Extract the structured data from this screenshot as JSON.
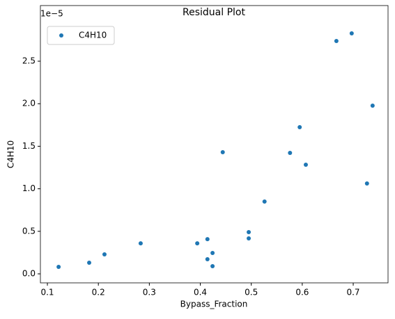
{
  "chart_data": {
    "type": "scatter",
    "title": "Residual Plot",
    "xlabel": "Bypass_Fraction",
    "ylabel": "C4H10",
    "y_offset_label": "1e−5",
    "series": [
      {
        "name": "C4H10",
        "color": "#1f77b4",
        "x": [
          0.122,
          0.182,
          0.212,
          0.283,
          0.394,
          0.414,
          0.414,
          0.424,
          0.424,
          0.444,
          0.495,
          0.495,
          0.526,
          0.576,
          0.595,
          0.607,
          0.667,
          0.697,
          0.727,
          0.738
        ],
        "values": [
          0.082,
          0.131,
          0.229,
          0.359,
          0.359,
          0.408,
          0.172,
          0.245,
          0.09,
          1.43,
          0.49,
          0.417,
          0.85,
          1.422,
          1.724,
          1.283,
          2.737,
          2.827,
          1.062,
          1.977
        ]
      }
    ],
    "xlim": [
      0.0863,
      0.7683
    ],
    "ylim": [
      -0.106,
      3.154
    ],
    "xticks": [
      0.1,
      0.2,
      0.3,
      0.4,
      0.5,
      0.6,
      0.7
    ],
    "yticks": [
      {
        "value": 0,
        "label": "0.0"
      },
      {
        "value": 0.5,
        "label": "0.5"
      },
      {
        "value": 1,
        "label": "1.0"
      },
      {
        "value": 1.5,
        "label": "1.5"
      },
      {
        "value": 2,
        "label": "2.0"
      },
      {
        "value": 2.5,
        "label": "2.5"
      }
    ],
    "legend": "upper left"
  }
}
